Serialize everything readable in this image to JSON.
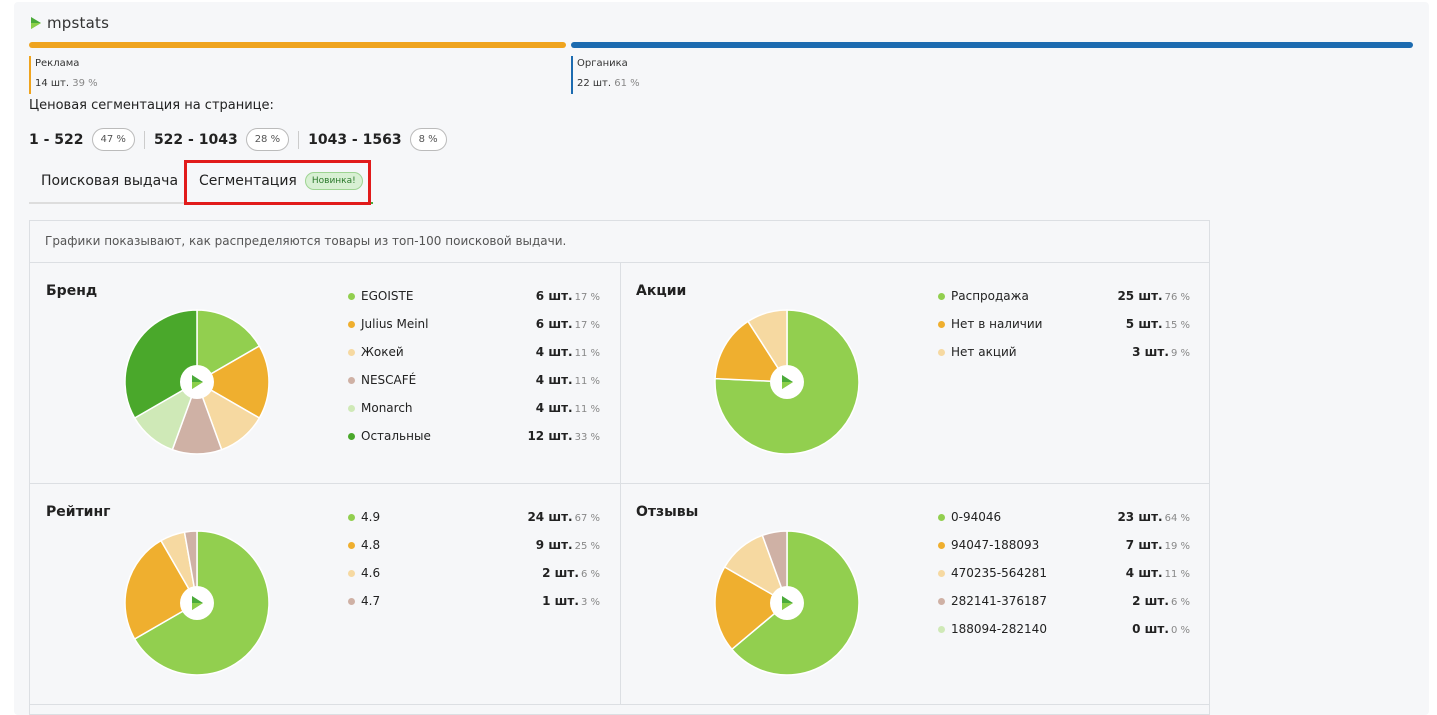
{
  "app": {
    "logo_text": "mpstats"
  },
  "split": {
    "ads": {
      "label": "Реклама",
      "count": "14 шт.",
      "pct": "39 %"
    },
    "organic": {
      "label": "Органика",
      "count": "22 шт.",
      "pct": "61 %"
    }
  },
  "price_segmentation": {
    "title": "Ценовая сегментация на странице:",
    "ranges": [
      {
        "label": "1 - 522",
        "pct": "47 %"
      },
      {
        "label": "522 - 1043",
        "pct": "28 %"
      },
      {
        "label": "1043 - 1563",
        "pct": "8 %"
      }
    ]
  },
  "tabs": {
    "search": "Поисковая выдача",
    "segmentation": "Сегментация",
    "badge": "Новинка!"
  },
  "grid_note": "Графики показывают, как распределяются товары из топ-100 поисковой выдачи.",
  "colors": {
    "green": "#92cf4f",
    "orange": "#efaf2f",
    "beige": "#f6d9a1",
    "rose": "#cfb1a5",
    "pale_green": "#cfe9b7",
    "dark_green": "#4aa82b"
  },
  "chart_data": [
    {
      "type": "pie",
      "title": "Бренд",
      "slices": [
        {
          "name": "EGOISTE",
          "count": "6 шт.",
          "pct": "17 %",
          "value": 6,
          "color": "#92cf4f"
        },
        {
          "name": "Julius Meinl",
          "count": "6 шт.",
          "pct": "17 %",
          "value": 6,
          "color": "#efaf2f"
        },
        {
          "name": "Жокей",
          "count": "4 шт.",
          "pct": "11 %",
          "value": 4,
          "color": "#f6d9a1"
        },
        {
          "name": "NESCAFÉ",
          "count": "4 шт.",
          "pct": "11 %",
          "value": 4,
          "color": "#cfb1a5"
        },
        {
          "name": "Monarch",
          "count": "4 шт.",
          "pct": "11 %",
          "value": 4,
          "color": "#cfe9b7"
        },
        {
          "name": "Остальные",
          "count": "12 шт.",
          "pct": "33 %",
          "value": 12,
          "color": "#4aa82b"
        }
      ]
    },
    {
      "type": "pie",
      "title": "Акции",
      "slices": [
        {
          "name": "Распродажа",
          "count": "25 шт.",
          "pct": "76 %",
          "value": 25,
          "color": "#92cf4f"
        },
        {
          "name": "Нет в наличии",
          "count": "5 шт.",
          "pct": "15 %",
          "value": 5,
          "color": "#efaf2f"
        },
        {
          "name": "Нет акций",
          "count": "3 шт.",
          "pct": "9 %",
          "value": 3,
          "color": "#f6d9a1"
        }
      ]
    },
    {
      "type": "pie",
      "title": "Рейтинг",
      "slices": [
        {
          "name": "4.9",
          "count": "24 шт.",
          "pct": "67 %",
          "value": 24,
          "color": "#92cf4f"
        },
        {
          "name": "4.8",
          "count": "9 шт.",
          "pct": "25 %",
          "value": 9,
          "color": "#efaf2f"
        },
        {
          "name": "4.6",
          "count": "2 шт.",
          "pct": "6 %",
          "value": 2,
          "color": "#f6d9a1"
        },
        {
          "name": "4.7",
          "count": "1 шт.",
          "pct": "3 %",
          "value": 1,
          "color": "#cfb1a5"
        }
      ]
    },
    {
      "type": "pie",
      "title": "Отзывы",
      "slices": [
        {
          "name": "0-94046",
          "count": "23 шт.",
          "pct": "64 %",
          "value": 23,
          "color": "#92cf4f"
        },
        {
          "name": "94047-188093",
          "count": "7 шт.",
          "pct": "19 %",
          "value": 7,
          "color": "#efaf2f"
        },
        {
          "name": "470235-564281",
          "count": "4 шт.",
          "pct": "11 %",
          "value": 4,
          "color": "#f6d9a1"
        },
        {
          "name": "282141-376187",
          "count": "2 шт.",
          "pct": "6 %",
          "value": 2,
          "color": "#cfb1a5"
        },
        {
          "name": "188094-282140",
          "count": "0 шт.",
          "pct": "0 %",
          "value": 0,
          "color": "#cfe9b7"
        }
      ]
    }
  ]
}
